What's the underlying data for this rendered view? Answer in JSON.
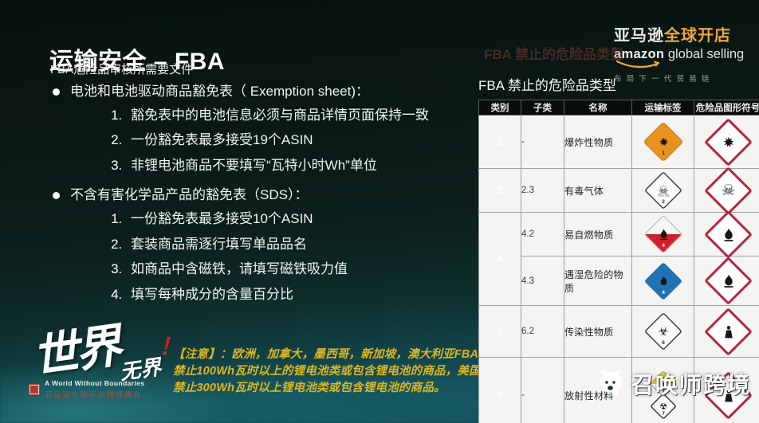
{
  "slide": {
    "title": "运输安全 – FBA",
    "subtitle": "FBA危险品审核所需要文件",
    "bullets": [
      {
        "label": "电池和电池驱动商品豁免表（ Exemption sheet)：",
        "items": [
          "豁免表中的电池信息必须与商品详情页面保持一致",
          "一份豁免表最多接受19个ASIN",
          "非锂电池商品不要填写“瓦特小时Wh”单位"
        ]
      },
      {
        "label": "不含有害化学品产品的豁免表（SDS）：",
        "items": [
          "一份豁免表最多接受10个ASIN",
          "套装商品需逐行填写单品品名",
          "如商品中含磁铁，请填写磁铁吸力值",
          "填写每种成分的含量百分比"
        ]
      }
    ],
    "notice": {
      "mark": "！",
      "text": "【注意】：欧洲，加拿大，墨西哥，新加坡，澳大利亚FBA禁止100Wh瓦时以上的锂电池类或包含锂电池的商品，美国禁止300Wh瓦时以上锂电池类或包含锂电池的商品。"
    }
  },
  "logo": {
    "cn_white": "亚马逊",
    "cn_orange": "全球开店",
    "en_bold": "amazon",
    "en_light": "global selling",
    "tagline": "布局下一代贸易链"
  },
  "table": {
    "ghost_title": "FBA 禁止的危险品类型",
    "title": "FBA 禁止的危险品类型",
    "headers": [
      "类别",
      "子类",
      "名称",
      "运输标签",
      "危险品图形符号"
    ],
    "rows": [
      {
        "category": "1",
        "rowspan": 1,
        "subclass": "-",
        "name": "爆炸性物质",
        "transport": "explosive",
        "label_no": "1",
        "label_text": "",
        "ghs": "exploding-bomb"
      },
      {
        "category": "2",
        "rowspan": 1,
        "subclass": "2.3",
        "name": "有毒气体",
        "transport": "toxic-gas",
        "label_no": "2",
        "label_text": "TOXIC GAS",
        "ghs": "skull"
      },
      {
        "category": "4",
        "rowspan": 2,
        "subclass": "4.2",
        "name": "易自燃物质",
        "transport": "spontaneously-combustible",
        "label_no": "4",
        "label_text": "",
        "ghs": "flame"
      },
      {
        "category": null,
        "subclass": "4.3",
        "name": "遇湿危险的物质",
        "transport": "dangerous-when-wet",
        "label_no": "4",
        "label_text": "",
        "ghs": "flame"
      },
      {
        "category": "6",
        "rowspan": 1,
        "subclass": "6.2",
        "name": "传染性物质",
        "transport": "infectious",
        "label_no": "6",
        "label_text": "",
        "ghs": "health-hazard"
      },
      {
        "category": "7",
        "rowspan": 1,
        "subclass": "-",
        "name": "放射性材料",
        "transport": "radioactive",
        "label_no": "7",
        "label_text": "",
        "ghs": "health-hazard"
      }
    ]
  },
  "footer": {
    "calligraphy_main": "世界",
    "calligraphy_sub": "无界",
    "tagline_en": "A World Without Boundaries",
    "tagline_cn": "亚马逊全球开店跨境峰会"
  },
  "watermark": {
    "text": "召唤师跨境"
  },
  "colors": {
    "accent_orange": "#eca63a",
    "notice_yellow": "#ddb722",
    "alert_red": "#d31f1f",
    "ghs_red": "#b5263e",
    "label_orange": "#e8921f",
    "label_blue": "#2173b4",
    "label_red": "#d01f2e",
    "label_yellow": "#f5d304",
    "table_header_bg": "#0a0b0b"
  }
}
